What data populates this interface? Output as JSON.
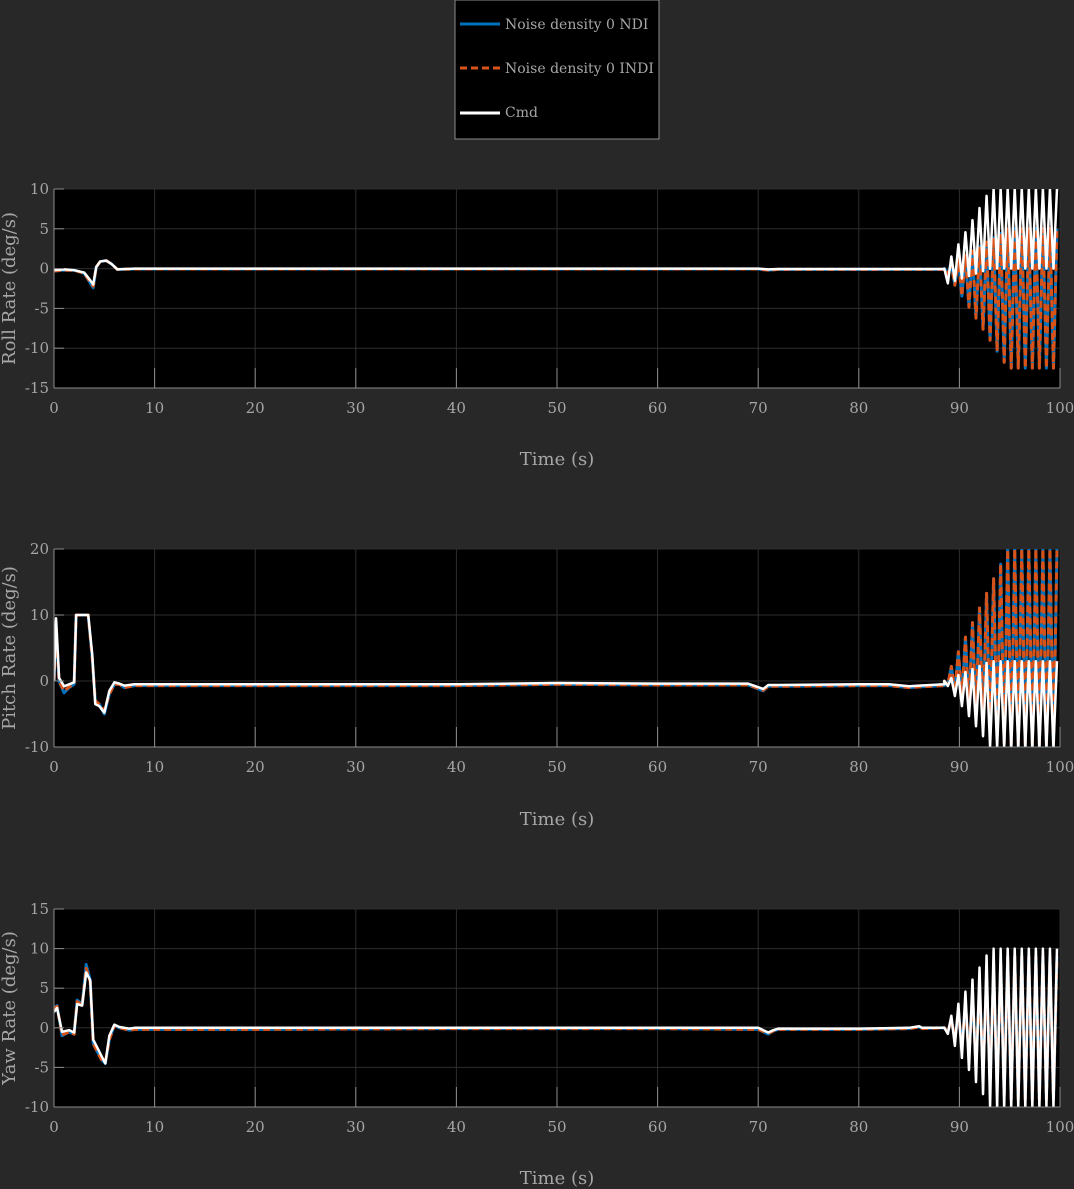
{
  "colors": {
    "figure_bg": "#282828",
    "axes_bg": "#000000",
    "grid": "#2e2e2e",
    "axis_text": "#a6a6a6",
    "ndi": "#0072bd",
    "indi": "#d95319",
    "cmd": "#ffffff"
  },
  "legend": {
    "entries": [
      {
        "label": "Noise density 0 NDI",
        "style": "solid",
        "color": "#0072bd"
      },
      {
        "label": "Noise density 0 INDI",
        "style": "dashed",
        "color": "#d95319"
      },
      {
        "label": "Cmd",
        "style": "solid",
        "color": "#ffffff"
      }
    ]
  },
  "chart_data": [
    {
      "type": "line",
      "title": "",
      "xlabel": "Time (s)",
      "ylabel": "Roll Rate (deg/s)",
      "xlim": [
        0,
        100
      ],
      "ylim": [
        -15,
        10
      ],
      "xticks": [
        "0",
        "10",
        "20",
        "30",
        "40",
        "50",
        "60",
        "70",
        "80",
        "90",
        "100"
      ],
      "yticks": [
        "10",
        "5",
        "0",
        "-5",
        "-10",
        "-15"
      ],
      "grid": true,
      "oscillation": {
        "start": 88.5,
        "end": 100,
        "period": 0.7,
        "cmd_max": 10,
        "resp_max": 5,
        "resp_min": -12.5
      },
      "series": [
        {
          "name": "Noise density 0 NDI",
          "x": [
            0,
            1,
            2,
            3,
            3.5,
            3.9,
            4.2,
            4.6,
            5.2,
            5.7,
            6.3,
            8,
            20,
            40,
            60,
            70,
            71,
            72,
            80,
            88.5
          ],
          "y": [
            -0.3,
            -0.2,
            -0.2,
            -0.6,
            -1.6,
            -2.4,
            0.2,
            0.9,
            1.0,
            0.6,
            -0.1,
            -0.05,
            -0.05,
            -0.05,
            -0.05,
            -0.05,
            -0.2,
            -0.1,
            -0.1,
            -0.1
          ]
        },
        {
          "name": "Noise density 0 INDI",
          "x": [
            0,
            1,
            2,
            3,
            3.5,
            3.9,
            4.2,
            4.6,
            5.2,
            5.7,
            6.3,
            8,
            20,
            40,
            60,
            70,
            71,
            72,
            80,
            88.5
          ],
          "y": [
            -0.3,
            -0.2,
            -0.2,
            -0.6,
            -1.5,
            -2.2,
            0.2,
            0.9,
            1.0,
            0.6,
            -0.1,
            -0.05,
            -0.05,
            -0.05,
            -0.05,
            -0.05,
            -0.2,
            -0.1,
            -0.1,
            -0.1
          ]
        },
        {
          "name": "Cmd",
          "x": [
            0,
            1,
            2,
            3,
            3.5,
            3.9,
            4.2,
            4.6,
            5.2,
            5.7,
            6.3,
            8,
            20,
            40,
            60,
            70,
            71,
            72,
            80,
            88.5
          ],
          "y": [
            -0.2,
            -0.1,
            -0.2,
            -0.5,
            -1.3,
            -2.0,
            0.2,
            0.9,
            1.0,
            0.6,
            -0.1,
            0,
            0,
            0,
            0,
            0,
            -0.1,
            -0.05,
            -0.05,
            -0.05
          ]
        }
      ]
    },
    {
      "type": "line",
      "title": "",
      "xlabel": "Time (s)",
      "ylabel": "Pitch Rate (deg/s)",
      "xlim": [
        0,
        100
      ],
      "ylim": [
        -10,
        20
      ],
      "xticks": [
        "0",
        "10",
        "20",
        "30",
        "40",
        "50",
        "60",
        "70",
        "80",
        "90",
        "100"
      ],
      "yticks": [
        "20",
        "10",
        "0",
        "-10"
      ],
      "grid": true,
      "oscillation": {
        "start": 88.5,
        "end": 100,
        "period": 0.7,
        "cmd_max": 3,
        "cmd_min": -10,
        "resp_max": 20,
        "resp_min": -10
      },
      "series": [
        {
          "name": "Noise density 0 NDI",
          "x": [
            0,
            0.2,
            0.5,
            1,
            1.5,
            2,
            2.2,
            2.4,
            2.8,
            3.4,
            3.8,
            4.1,
            4.5,
            5,
            5.5,
            6,
            6.5,
            7,
            8,
            20,
            40,
            50,
            60,
            69,
            70.5,
            71,
            72,
            80,
            83,
            85,
            86,
            88.5
          ],
          "y": [
            0,
            9,
            0,
            -1.8,
            -1,
            -0.5,
            10,
            10,
            10,
            10,
            3.5,
            -3,
            -3.5,
            -5,
            -2,
            -0.5,
            -0.5,
            -1,
            -0.7,
            -0.7,
            -0.7,
            -0.5,
            -0.6,
            -0.6,
            -1.5,
            -0.8,
            -0.8,
            -0.7,
            -0.7,
            -1,
            -0.9,
            -0.7
          ]
        },
        {
          "name": "Noise density 0 INDI",
          "x": [
            0,
            0.2,
            0.5,
            1,
            1.5,
            2,
            2.2,
            2.4,
            2.8,
            3.4,
            3.8,
            4.1,
            4.5,
            5,
            5.5,
            6,
            6.5,
            7,
            8,
            20,
            40,
            50,
            60,
            69,
            70.5,
            71,
            72,
            80,
            83,
            85,
            86,
            88.5
          ],
          "y": [
            0,
            9,
            0,
            -1.5,
            -0.9,
            -0.5,
            10,
            10,
            10,
            10,
            3.5,
            -3,
            -3.5,
            -4.5,
            -2,
            -0.5,
            -0.5,
            -1,
            -0.7,
            -0.7,
            -0.7,
            -0.5,
            -0.6,
            -0.6,
            -1.4,
            -0.8,
            -0.8,
            -0.7,
            -0.7,
            -1,
            -0.9,
            -0.7
          ]
        },
        {
          "name": "Cmd",
          "x": [
            0,
            0.2,
            0.5,
            1,
            1.5,
            2,
            2.2,
            2.4,
            2.8,
            3.4,
            3.8,
            4.1,
            4.5,
            5,
            5.5,
            6,
            6.5,
            7,
            8,
            20,
            40,
            50,
            60,
            69,
            70.5,
            71,
            72,
            80,
            83,
            85,
            86,
            88.5
          ],
          "y": [
            0,
            9.5,
            0.5,
            -0.8,
            -0.5,
            -0.2,
            10,
            10,
            10,
            10,
            4,
            -3.5,
            -3.8,
            -4.8,
            -1.5,
            -0.2,
            -0.4,
            -0.7,
            -0.5,
            -0.5,
            -0.5,
            -0.3,
            -0.4,
            -0.4,
            -1.2,
            -0.6,
            -0.6,
            -0.5,
            -0.5,
            -0.8,
            -0.7,
            -0.5
          ]
        }
      ]
    },
    {
      "type": "line",
      "title": "",
      "xlabel": "Time (s)",
      "ylabel": "Yaw Rate (deg/s)",
      "xlim": [
        0,
        100
      ],
      "ylim": [
        -10,
        15
      ],
      "xticks": [
        "0",
        "10",
        "20",
        "30",
        "40",
        "50",
        "60",
        "70",
        "80",
        "90",
        "100"
      ],
      "yticks": [
        "15",
        "10",
        "5",
        "0",
        "-5",
        "-10"
      ],
      "grid": true,
      "oscillation": {
        "start": 88.5,
        "end": 100,
        "period": 0.7,
        "cmd_max": 10,
        "cmd_min": -10,
        "resp_max": 9,
        "resp_min": -9
      },
      "series": [
        {
          "name": "Noise density 0 NDI",
          "x": [
            0,
            0.3,
            0.8,
            1.5,
            2,
            2.3,
            2.8,
            3.2,
            3.6,
            3.9,
            4.3,
            4.7,
            5.1,
            5.5,
            6,
            6.5,
            7.5,
            8,
            20,
            40,
            60,
            70,
            71,
            71.5,
            72,
            80,
            85,
            86,
            86.3,
            88.5
          ],
          "y": [
            2.5,
            2.8,
            -1,
            -0.5,
            -0.8,
            3.5,
            3,
            8,
            6,
            -2,
            -3,
            -4,
            -4.5,
            -1.5,
            0.3,
            0,
            -0.3,
            -0.2,
            -0.2,
            -0.1,
            -0.1,
            -0.2,
            -0.8,
            -0.4,
            -0.2,
            -0.2,
            -0.1,
            0.1,
            -0.1,
            0
          ]
        },
        {
          "name": "Noise density 0 INDI",
          "x": [
            0,
            0.3,
            0.8,
            1.5,
            2,
            2.3,
            2.8,
            3.2,
            3.6,
            3.9,
            4.3,
            4.7,
            5.1,
            5.5,
            6,
            6.5,
            7.5,
            8,
            20,
            40,
            60,
            70,
            71,
            71.5,
            72,
            80,
            85,
            86,
            86.3,
            88.5
          ],
          "y": [
            2.4,
            2.7,
            -0.9,
            -0.5,
            -0.8,
            3.3,
            2.9,
            7.5,
            5.8,
            -2,
            -3,
            -4,
            -4.3,
            -1.5,
            0.3,
            0,
            -0.3,
            -0.2,
            -0.2,
            -0.1,
            -0.1,
            -0.2,
            -0.7,
            -0.4,
            -0.2,
            -0.2,
            -0.1,
            0.1,
            -0.1,
            0
          ]
        },
        {
          "name": "Cmd",
          "x": [
            0,
            0.3,
            0.8,
            1.5,
            2,
            2.3,
            2.8,
            3.2,
            3.6,
            3.9,
            4.3,
            4.7,
            5.1,
            5.5,
            6,
            6.5,
            7.5,
            8,
            20,
            40,
            60,
            70,
            71,
            71.5,
            72,
            80,
            85,
            86,
            86.3,
            88.5
          ],
          "y": [
            2,
            2.5,
            -0.5,
            -0.3,
            -0.6,
            3,
            2.8,
            7,
            6,
            -1.5,
            -2.5,
            -3.5,
            -4.5,
            -1,
            0.4,
            0.1,
            -0.1,
            0,
            0,
            0,
            0,
            0,
            -0.6,
            -0.3,
            -0.1,
            -0.1,
            0,
            0.2,
            0,
            0
          ]
        }
      ]
    }
  ]
}
